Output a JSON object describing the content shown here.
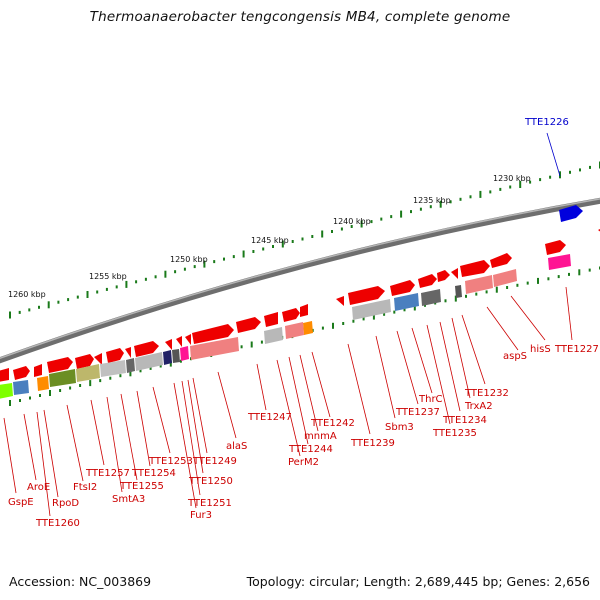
{
  "title": "Thermoanaerobacter tengcongensis MB4, complete genome",
  "footer": {
    "accession": "Accession: NC_003869",
    "summary": "Topology: circular; Length: 2,689,445 bp; Genes: 2,656"
  },
  "colors": {
    "gene_red": "#ee0000",
    "gene_blue": "#0000dd",
    "label_red": "#cc0000",
    "label_blue": "#0000cc",
    "scale_green": "#1a7a1a",
    "backbone": "#7a7a7a"
  },
  "scale_labels": [
    "1260 kbp",
    "1255 kbp",
    "1250 kbp",
    "1245 kbp",
    "1240 kbp",
    "1235 kbp",
    "1230 kbp"
  ],
  "gene_labels": [
    "TTE1226",
    "TTE1227",
    "hisS",
    "aspS",
    "TTE1232",
    "TrxA2",
    "TTE1234",
    "TTE1235",
    "ThrC",
    "TTE1237",
    "Sbm3",
    "TTE1239",
    "TTE1242",
    "mnmA",
    "TTE1244",
    "PerM2",
    "TTE1247",
    "alaS",
    "TTE1249",
    "TTE1250",
    "TTE1251",
    "Fur3",
    "TTE1253",
    "TTE1254",
    "TTE1255",
    "SmtA3",
    "TTE1257",
    "FtsI2",
    "RpoD",
    "TTE1260",
    "AroE",
    "GspE"
  ]
}
